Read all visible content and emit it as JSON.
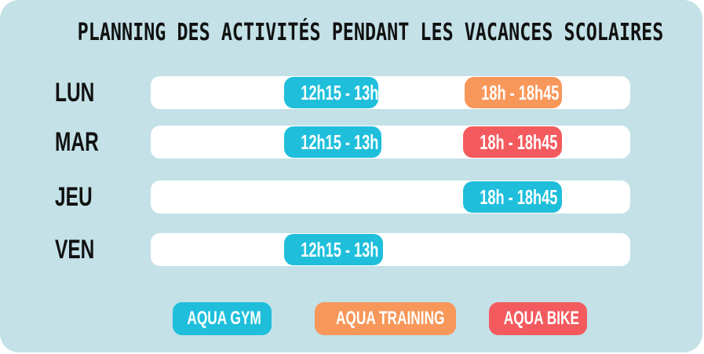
{
  "title": "PLANNING DES ACTIVITÉS PENDANT LES VACANCES SCOLAIRES",
  "colors": {
    "background": "#c3e1e7",
    "track": "#ffffff",
    "aqua_gym": "#1fbfdc",
    "aqua_training": "#f8975a",
    "aqua_bike": "#f35a5e"
  },
  "schedule": [
    {
      "day": "LUN",
      "slots": [
        {
          "time": "12h15 - 13h",
          "activity": "aqua_gym"
        },
        {
          "time": "18h - 18h45",
          "activity": "aqua_training"
        }
      ]
    },
    {
      "day": "MAR",
      "slots": [
        {
          "time": "12h15 - 13h",
          "activity": "aqua_gym"
        },
        {
          "time": "18h - 18h45",
          "activity": "aqua_bike"
        }
      ]
    },
    {
      "day": "JEU",
      "slots": [
        {
          "time": "18h - 18h45",
          "activity": "aqua_gym"
        }
      ]
    },
    {
      "day": "VEN",
      "slots": [
        {
          "time": "12h15 - 13h",
          "activity": "aqua_gym"
        }
      ]
    }
  ],
  "legend": [
    {
      "label": "AQUA GYM",
      "activity": "aqua_gym"
    },
    {
      "label": "AQUA TRAINING",
      "activity": "aqua_training"
    },
    {
      "label": "AQUA BIKE",
      "activity": "aqua_bike"
    }
  ]
}
